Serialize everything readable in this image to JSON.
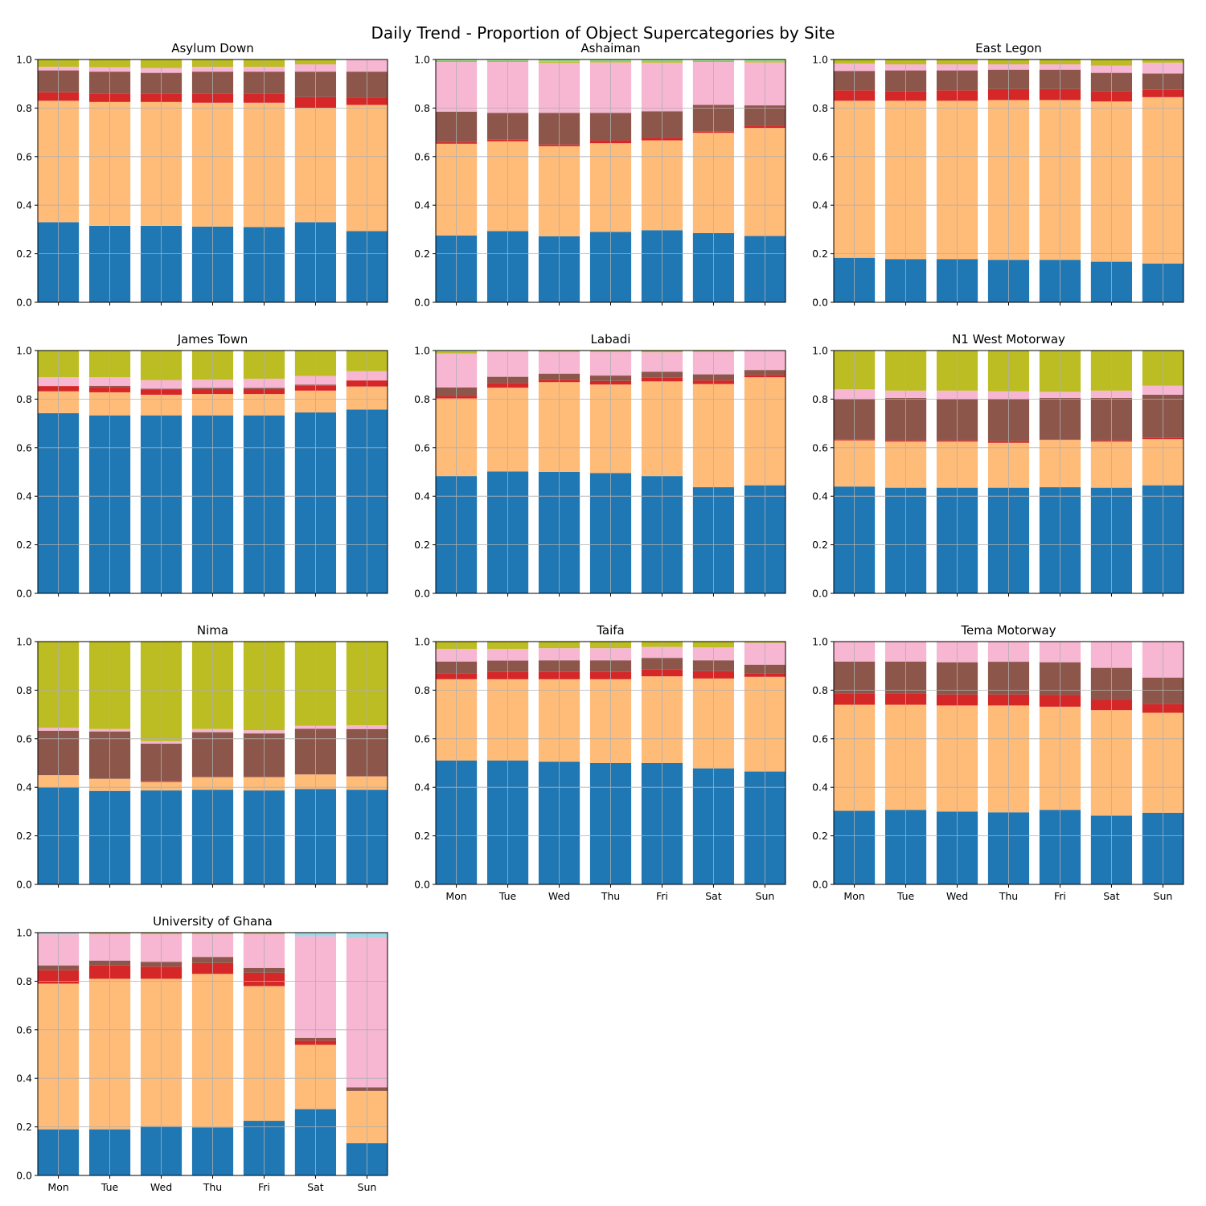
{
  "title": "Daily Trend - Proportion of Object Supercategories by Site",
  "chart_data": {
    "type": "bar",
    "stacked": true,
    "categories": [
      "Mon",
      "Tue",
      "Wed",
      "Thu",
      "Fri",
      "Sat",
      "Sun"
    ],
    "ylim": [
      0,
      1.0
    ],
    "yticks": [
      "0.0",
      "0.2",
      "0.4",
      "0.6",
      "0.8",
      "1.0"
    ],
    "grid": true,
    "legend": "none",
    "series_colors": [
      "#1f77b4",
      "#ffbb78",
      "#d62728",
      "#8c564b",
      "#f7b6d2",
      "#bcbd22",
      "#98df8a",
      "#9edae5"
    ],
    "panels": [
      {
        "title": "Asylum Down",
        "stacks": [
          [
            0.33,
            0.5,
            0.035,
            0.09,
            0.015,
            0.03
          ],
          [
            0.315,
            0.51,
            0.035,
            0.09,
            0.018,
            0.032
          ],
          [
            0.315,
            0.51,
            0.033,
            0.087,
            0.02,
            0.035
          ],
          [
            0.312,
            0.51,
            0.038,
            0.09,
            0.02,
            0.03
          ],
          [
            0.31,
            0.512,
            0.038,
            0.09,
            0.02,
            0.03
          ],
          [
            0.33,
            0.47,
            0.045,
            0.105,
            0.03,
            0.02
          ],
          [
            0.293,
            0.52,
            0.03,
            0.107,
            0.05,
            0.0
          ]
        ]
      },
      {
        "title": "Ashaiman",
        "stacks": [
          [
            0.275,
            0.378,
            0.007,
            0.125,
            0.205,
            0.004,
            0.006
          ],
          [
            0.293,
            0.37,
            0.007,
            0.11,
            0.21,
            0.004,
            0.006
          ],
          [
            0.272,
            0.371,
            0.007,
            0.13,
            0.206,
            0.004,
            0.01
          ],
          [
            0.29,
            0.365,
            0.012,
            0.113,
            0.208,
            0.005,
            0.007
          ],
          [
            0.297,
            0.37,
            0.01,
            0.11,
            0.2,
            0.006,
            0.007
          ],
          [
            0.285,
            0.413,
            0.005,
            0.11,
            0.177,
            0.004,
            0.006
          ],
          [
            0.273,
            0.445,
            0.01,
            0.083,
            0.177,
            0.004,
            0.008
          ]
        ]
      },
      {
        "title": "East Legon",
        "stacks": [
          [
            0.183,
            0.647,
            0.043,
            0.08,
            0.03,
            0.017
          ],
          [
            0.178,
            0.652,
            0.04,
            0.085,
            0.025,
            0.02
          ],
          [
            0.178,
            0.652,
            0.043,
            0.082,
            0.025,
            0.02
          ],
          [
            0.175,
            0.658,
            0.045,
            0.08,
            0.022,
            0.02
          ],
          [
            0.175,
            0.658,
            0.045,
            0.08,
            0.022,
            0.02
          ],
          [
            0.167,
            0.66,
            0.043,
            0.075,
            0.03,
            0.025
          ],
          [
            0.16,
            0.685,
            0.03,
            0.067,
            0.045,
            0.013
          ]
        ]
      },
      {
        "title": "James Town",
        "stacks": [
          [
            0.742,
            0.09,
            0.022,
            0.0,
            0.036,
            0.11
          ],
          [
            0.733,
            0.095,
            0.022,
            0.005,
            0.035,
            0.11
          ],
          [
            0.733,
            0.085,
            0.02,
            0.005,
            0.035,
            0.122
          ],
          [
            0.733,
            0.088,
            0.02,
            0.005,
            0.034,
            0.12
          ],
          [
            0.733,
            0.088,
            0.02,
            0.005,
            0.038,
            0.116
          ],
          [
            0.745,
            0.09,
            0.02,
            0.005,
            0.035,
            0.105
          ],
          [
            0.757,
            0.095,
            0.025,
            0.0,
            0.038,
            0.085
          ]
        ]
      },
      {
        "title": "Labadi",
        "stacks": [
          [
            0.483,
            0.32,
            0.01,
            0.035,
            0.14,
            0.007,
            0.005
          ],
          [
            0.502,
            0.345,
            0.02,
            0.025,
            0.105,
            0.003
          ],
          [
            0.5,
            0.37,
            0.01,
            0.025,
            0.09,
            0.005
          ],
          [
            0.495,
            0.365,
            0.015,
            0.022,
            0.098,
            0.005
          ],
          [
            0.483,
            0.39,
            0.015,
            0.025,
            0.08,
            0.007
          ],
          [
            0.437,
            0.425,
            0.015,
            0.025,
            0.093,
            0.005
          ],
          [
            0.445,
            0.445,
            0.01,
            0.02,
            0.08,
            0.0
          ]
        ]
      },
      {
        "title": "N1 West Motorway",
        "stacks": [
          [
            0.44,
            0.19,
            0.005,
            0.165,
            0.04,
            0.16
          ],
          [
            0.435,
            0.19,
            0.005,
            0.175,
            0.03,
            0.165
          ],
          [
            0.435,
            0.19,
            0.005,
            0.17,
            0.035,
            0.165
          ],
          [
            0.435,
            0.185,
            0.007,
            0.173,
            0.032,
            0.168
          ],
          [
            0.437,
            0.195,
            0.003,
            0.17,
            0.025,
            0.17
          ],
          [
            0.435,
            0.19,
            0.005,
            0.175,
            0.03,
            0.165
          ],
          [
            0.445,
            0.19,
            0.005,
            0.178,
            0.037,
            0.145
          ]
        ]
      },
      {
        "title": "Nima",
        "stacks": [
          [
            0.4,
            0.05,
            0.0,
            0.183,
            0.012,
            0.355
          ],
          [
            0.385,
            0.05,
            0.0,
            0.195,
            0.01,
            0.36
          ],
          [
            0.387,
            0.035,
            0.003,
            0.155,
            0.01,
            0.41
          ],
          [
            0.39,
            0.052,
            0.0,
            0.185,
            0.013,
            0.36
          ],
          [
            0.387,
            0.055,
            0.0,
            0.18,
            0.013,
            0.365
          ],
          [
            0.393,
            0.06,
            0.0,
            0.188,
            0.012,
            0.347
          ],
          [
            0.39,
            0.055,
            0.0,
            0.195,
            0.015,
            0.345
          ]
        ]
      },
      {
        "title": "Taifa",
        "stacks": [
          [
            0.51,
            0.335,
            0.025,
            0.048,
            0.052,
            0.03
          ],
          [
            0.51,
            0.335,
            0.03,
            0.047,
            0.048,
            0.03
          ],
          [
            0.505,
            0.34,
            0.03,
            0.048,
            0.05,
            0.027
          ],
          [
            0.5,
            0.345,
            0.03,
            0.048,
            0.05,
            0.027
          ],
          [
            0.5,
            0.357,
            0.028,
            0.048,
            0.045,
            0.022
          ],
          [
            0.478,
            0.37,
            0.03,
            0.045,
            0.053,
            0.024
          ],
          [
            0.465,
            0.39,
            0.015,
            0.035,
            0.09,
            0.005
          ]
        ]
      },
      {
        "title": "Tema Motorway",
        "stacks": [
          [
            0.303,
            0.437,
            0.045,
            0.133,
            0.082
          ],
          [
            0.307,
            0.433,
            0.045,
            0.133,
            0.082
          ],
          [
            0.3,
            0.437,
            0.045,
            0.133,
            0.085
          ],
          [
            0.297,
            0.44,
            0.045,
            0.135,
            0.083
          ],
          [
            0.307,
            0.425,
            0.048,
            0.135,
            0.085
          ],
          [
            0.283,
            0.435,
            0.042,
            0.132,
            0.108
          ],
          [
            0.295,
            0.412,
            0.035,
            0.11,
            0.148
          ]
        ]
      },
      {
        "title": "University of Ghana",
        "stacks": [
          [
            0.19,
            0.6,
            0.055,
            0.02,
            0.128,
            0.0,
            0.0,
            0.007
          ],
          [
            0.19,
            0.62,
            0.055,
            0.02,
            0.11,
            0.005
          ],
          [
            0.203,
            0.607,
            0.05,
            0.02,
            0.115,
            0.005
          ],
          [
            0.198,
            0.632,
            0.045,
            0.025,
            0.095,
            0.005
          ],
          [
            0.225,
            0.555,
            0.055,
            0.02,
            0.14,
            0.005
          ],
          [
            0.273,
            0.265,
            0.017,
            0.012,
            0.418,
            0.0,
            0.0,
            0.015
          ],
          [
            0.133,
            0.215,
            0.0,
            0.015,
            0.617,
            0.0,
            0.0,
            0.02
          ]
        ]
      }
    ]
  }
}
